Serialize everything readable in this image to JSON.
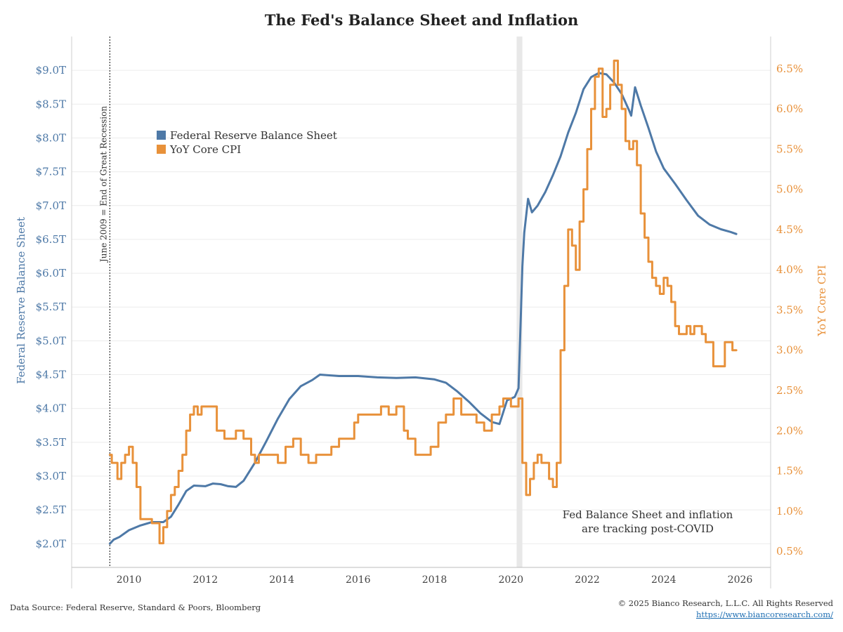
{
  "title": "The Fed's Balance Sheet and Inflation",
  "footer": {
    "source": "Data Source: Federal Reserve, Standard & Poors, Bloomberg",
    "copyright": "© 2025 Bianco Research, L.L.C. All Rights Reserved",
    "url": "https://www.biancoresearch.com/"
  },
  "chart_data": {
    "type": "line",
    "title": "The Fed's Balance Sheet and Inflation",
    "y_left": {
      "label": "Federal Reserve Balance Sheet",
      "range": [
        1.65,
        9.5
      ],
      "ticks": [
        2.0,
        2.5,
        3.0,
        3.5,
        4.0,
        4.5,
        5.0,
        5.5,
        6.0,
        6.5,
        7.0,
        7.5,
        8.0,
        8.5,
        9.0
      ],
      "tick_labels": [
        "$2.0T",
        "$2.5T",
        "$3.0T",
        "$3.5T",
        "$4.0T",
        "$4.5T",
        "$5.0T",
        "$5.5T",
        "$6.0T",
        "$6.5T",
        "$7.0T",
        "$7.5T",
        "$8.0T",
        "$8.5T",
        "$9.0T"
      ]
    },
    "y_right": {
      "label": "YoY Core CPI",
      "range": [
        0.3,
        6.9
      ],
      "ticks": [
        0.5,
        1.0,
        1.5,
        2.0,
        2.5,
        3.0,
        3.5,
        4.0,
        4.5,
        5.0,
        5.5,
        6.0,
        6.5
      ],
      "tick_labels": [
        "0.5%",
        "1.0%",
        "1.5%",
        "2.0%",
        "2.5%",
        "3.0%",
        "3.5%",
        "4.0%",
        "4.5%",
        "5.0%",
        "5.5%",
        "6.0%",
        "6.5%"
      ]
    },
    "x_axis": {
      "range": [
        2008.5,
        2026.8
      ],
      "ticks": [
        2010,
        2012,
        2014,
        2016,
        2018,
        2020,
        2022,
        2024,
        2026
      ],
      "tick_labels": [
        "2010",
        "2012",
        "2014",
        "2016",
        "2018",
        "2020",
        "2022",
        "2024",
        "2026"
      ]
    },
    "grid": "horizontal",
    "legend": {
      "placement": "top-left",
      "entries": [
        "Federal Reserve Balance Sheet",
        "YoY Core CPI"
      ]
    },
    "vertical_line": {
      "x": 2009.5,
      "label": "June 2009 = End of Great Recession"
    },
    "shaded_region": {
      "x_start": 2020.15,
      "x_end": 2020.3
    },
    "annotation": {
      "lines": [
        "Fed Balance Sheet and inflation",
        "are tracking post-COVID"
      ],
      "x": 2021.3,
      "y_right": 0.95
    },
    "series": [
      {
        "name": "Federal Reserve Balance Sheet",
        "axis": "left",
        "color": "#4e79a7",
        "x": [
          2009.5,
          2009.6,
          2009.75,
          2010.0,
          2010.3,
          2010.6,
          2010.9,
          2011.1,
          2011.3,
          2011.5,
          2011.7,
          2012.0,
          2012.2,
          2012.4,
          2012.6,
          2012.8,
          2013.0,
          2013.3,
          2013.6,
          2013.9,
          2014.2,
          2014.5,
          2014.8,
          2015.0,
          2015.5,
          2016.0,
          2016.5,
          2017.0,
          2017.5,
          2018.0,
          2018.3,
          2018.6,
          2018.9,
          2019.2,
          2019.5,
          2019.7,
          2019.9,
          2020.1,
          2020.2,
          2020.25,
          2020.3,
          2020.35,
          2020.45,
          2020.55,
          2020.7,
          2020.9,
          2021.1,
          2021.3,
          2021.5,
          2021.7,
          2021.9,
          2022.1,
          2022.3,
          2022.5,
          2022.7,
          2022.9,
          2023.1,
          2023.15,
          2023.25,
          2023.4,
          2023.6,
          2023.8,
          2024.0,
          2024.3,
          2024.6,
          2024.9,
          2025.2,
          2025.5,
          2025.75,
          2025.9
        ],
        "values": [
          2.0,
          2.06,
          2.1,
          2.2,
          2.27,
          2.32,
          2.32,
          2.4,
          2.58,
          2.78,
          2.86,
          2.85,
          2.89,
          2.88,
          2.85,
          2.84,
          2.93,
          3.2,
          3.52,
          3.85,
          4.14,
          4.33,
          4.42,
          4.5,
          4.48,
          4.48,
          4.46,
          4.45,
          4.46,
          4.43,
          4.38,
          4.25,
          4.1,
          3.93,
          3.8,
          3.77,
          4.12,
          4.17,
          4.3,
          5.2,
          6.1,
          6.6,
          7.1,
          6.9,
          7.0,
          7.2,
          7.45,
          7.73,
          8.08,
          8.37,
          8.72,
          8.9,
          8.96,
          8.94,
          8.82,
          8.65,
          8.4,
          8.33,
          8.75,
          8.48,
          8.15,
          7.8,
          7.55,
          7.32,
          7.08,
          6.85,
          6.72,
          6.65,
          6.61,
          6.58
        ]
      },
      {
        "name": "YoY Core CPI",
        "axis": "right",
        "color": "#e8913a",
        "x": [
          2009.5,
          2009.55,
          2009.7,
          2009.8,
          2009.9,
          2010.0,
          2010.1,
          2010.2,
          2010.3,
          2010.4,
          2010.5,
          2010.6,
          2010.8,
          2010.9,
          2011.0,
          2011.1,
          2011.2,
          2011.3,
          2011.4,
          2011.5,
          2011.6,
          2011.7,
          2011.8,
          2011.9,
          2012.1,
          2012.3,
          2012.5,
          2012.7,
          2012.8,
          2013.0,
          2013.2,
          2013.3,
          2013.4,
          2013.5,
          2013.7,
          2013.9,
          2014.1,
          2014.3,
          2014.5,
          2014.7,
          2014.9,
          2015.1,
          2015.3,
          2015.5,
          2015.7,
          2015.9,
          2016.0,
          2016.2,
          2016.4,
          2016.6,
          2016.8,
          2017.0,
          2017.2,
          2017.3,
          2017.5,
          2017.7,
          2017.9,
          2018.1,
          2018.3,
          2018.5,
          2018.7,
          2018.9,
          2019.1,
          2019.3,
          2019.5,
          2019.7,
          2019.8,
          2020.0,
          2020.2,
          2020.3,
          2020.4,
          2020.5,
          2020.6,
          2020.7,
          2020.8,
          2020.9,
          2021.0,
          2021.1,
          2021.2,
          2021.3,
          2021.4,
          2021.5,
          2021.6,
          2021.7,
          2021.8,
          2021.9,
          2022.0,
          2022.1,
          2022.2,
          2022.3,
          2022.4,
          2022.5,
          2022.6,
          2022.7,
          2022.8,
          2022.9,
          2023.0,
          2023.1,
          2023.2,
          2023.3,
          2023.4,
          2023.5,
          2023.6,
          2023.7,
          2023.8,
          2023.9,
          2024.0,
          2024.1,
          2024.2,
          2024.3,
          2024.4,
          2024.5,
          2024.6,
          2024.7,
          2024.8,
          2024.9,
          2025.0,
          2025.1,
          2025.2,
          2025.3,
          2025.4,
          2025.5,
          2025.6,
          2025.7,
          2025.8,
          2025.9
        ],
        "values": [
          1.7,
          1.6,
          1.4,
          1.6,
          1.7,
          1.8,
          1.6,
          1.3,
          0.9,
          0.9,
          0.9,
          0.85,
          0.6,
          0.8,
          1.0,
          1.2,
          1.3,
          1.5,
          1.7,
          2.0,
          2.2,
          2.3,
          2.2,
          2.3,
          2.3,
          2.0,
          1.9,
          1.9,
          2.0,
          1.9,
          1.7,
          1.6,
          1.7,
          1.7,
          1.7,
          1.6,
          1.8,
          1.9,
          1.7,
          1.6,
          1.7,
          1.7,
          1.8,
          1.9,
          1.9,
          2.1,
          2.2,
          2.2,
          2.2,
          2.3,
          2.2,
          2.3,
          2.0,
          1.9,
          1.7,
          1.7,
          1.8,
          2.1,
          2.2,
          2.4,
          2.2,
          2.2,
          2.1,
          2.0,
          2.2,
          2.3,
          2.4,
          2.3,
          2.4,
          1.6,
          1.2,
          1.4,
          1.6,
          1.7,
          1.6,
          1.6,
          1.4,
          1.3,
          1.6,
          3.0,
          3.8,
          4.5,
          4.3,
          4.0,
          4.6,
          5.0,
          5.5,
          6.0,
          6.4,
          6.5,
          5.9,
          6.0,
          6.3,
          6.6,
          6.3,
          6.0,
          5.6,
          5.5,
          5.6,
          5.3,
          4.7,
          4.4,
          4.1,
          3.9,
          3.8,
          3.7,
          3.9,
          3.8,
          3.6,
          3.3,
          3.2,
          3.2,
          3.3,
          3.2,
          3.3,
          3.3,
          3.2,
          3.1,
          3.1,
          2.8,
          2.8,
          2.8,
          3.1,
          3.1,
          3.0,
          3.0
        ]
      }
    ]
  }
}
